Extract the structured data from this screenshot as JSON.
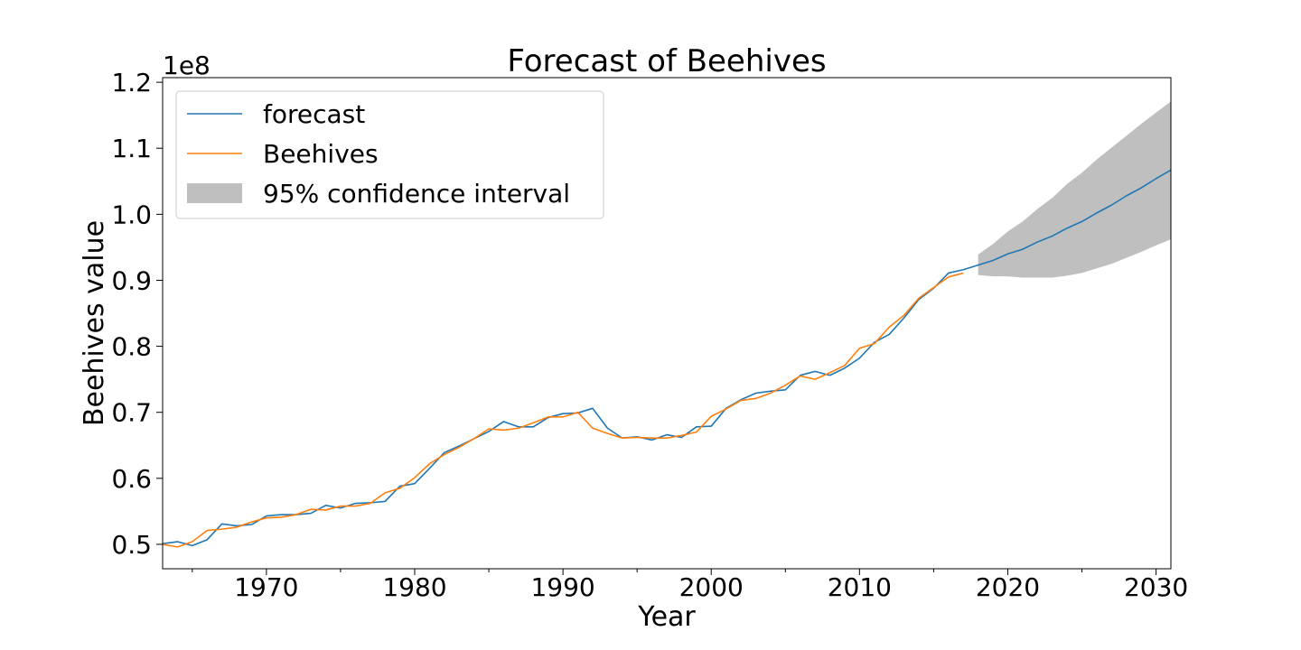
{
  "chart_data": {
    "type": "line",
    "title": "Forecast of Beehives",
    "xlabel": "Year",
    "ylabel": "Beehives value",
    "y_offset_label": "1e8",
    "xlim": [
      1963,
      2031
    ],
    "ylim": [
      0.463,
      1.207
    ],
    "y_scale_factor": 100000000,
    "x_ticks": [
      1970,
      1980,
      1990,
      2000,
      2010,
      2020,
      2030
    ],
    "x_tick_labels": [
      "1970",
      "1980",
      "1990",
      "2000",
      "2010",
      "2020",
      "2030"
    ],
    "y_ticks": [
      0.5,
      0.6,
      0.7,
      0.8,
      0.9,
      1.0,
      1.1,
      1.2
    ],
    "y_tick_labels": [
      "0.5",
      "0.6",
      "0.7",
      "0.8",
      "0.9",
      "1.0",
      "1.1",
      "1.2"
    ],
    "grid": false,
    "legend": {
      "position": "upper-left",
      "entries": [
        {
          "label": "forecast",
          "kind": "line",
          "color": "#1f77b4"
        },
        {
          "label": "Beehives",
          "kind": "line",
          "color": "#ff7f0e"
        },
        {
          "label": "95% confidence interval",
          "kind": "patch",
          "color": "#bfbfbf"
        }
      ]
    },
    "series": [
      {
        "name": "forecast",
        "color": "#1f77b4",
        "x": [
          1963,
          1964,
          1965,
          1966,
          1967,
          1968,
          1969,
          1970,
          1971,
          1972,
          1973,
          1974,
          1975,
          1976,
          1977,
          1978,
          1979,
          1980,
          1981,
          1982,
          1983,
          1984,
          1985,
          1986,
          1987,
          1988,
          1989,
          1990,
          1991,
          1992,
          1993,
          1994,
          1995,
          1996,
          1997,
          1998,
          1999,
          2000,
          2001,
          2002,
          2003,
          2004,
          2005,
          2006,
          2007,
          2008,
          2009,
          2010,
          2011,
          2012,
          2013,
          2014,
          2015,
          2016,
          2017,
          2018,
          2019,
          2020,
          2021,
          2022,
          2023,
          2024,
          2025,
          2026,
          2027,
          2028,
          2029,
          2030,
          2031
        ],
        "values": [
          0.501,
          0.504,
          0.498,
          0.507,
          0.531,
          0.528,
          0.53,
          0.543,
          0.545,
          0.545,
          0.547,
          0.559,
          0.555,
          0.562,
          0.563,
          0.565,
          0.588,
          0.592,
          0.615,
          0.639,
          0.649,
          0.66,
          0.671,
          0.686,
          0.678,
          0.678,
          0.692,
          0.698,
          0.699,
          0.706,
          0.676,
          0.661,
          0.663,
          0.658,
          0.666,
          0.662,
          0.678,
          0.679,
          0.706,
          0.719,
          0.729,
          0.732,
          0.734,
          0.756,
          0.762,
          0.756,
          0.767,
          0.782,
          0.806,
          0.818,
          0.843,
          0.871,
          0.888,
          0.911,
          0.916,
          0.923,
          0.93,
          0.94,
          0.947,
          0.958,
          0.967,
          0.979,
          0.989,
          1.002,
          1.014,
          1.028,
          1.04,
          1.054,
          1.067
        ]
      },
      {
        "name": "Beehives",
        "color": "#ff7f0e",
        "x": [
          1963,
          1964,
          1965,
          1966,
          1967,
          1968,
          1969,
          1970,
          1971,
          1972,
          1973,
          1974,
          1975,
          1976,
          1977,
          1978,
          1979,
          1980,
          1981,
          1982,
          1983,
          1984,
          1985,
          1986,
          1987,
          1988,
          1989,
          1990,
          1991,
          1992,
          1993,
          1994,
          1995,
          1996,
          1997,
          1998,
          1999,
          2000,
          2001,
          2002,
          2003,
          2004,
          2005,
          2006,
          2007,
          2008,
          2009,
          2010,
          2011,
          2012,
          2013,
          2014,
          2015,
          2016,
          2017
        ],
        "values": [
          0.5,
          0.496,
          0.504,
          0.521,
          0.523,
          0.526,
          0.534,
          0.54,
          0.541,
          0.545,
          0.553,
          0.552,
          0.558,
          0.558,
          0.562,
          0.578,
          0.585,
          0.601,
          0.622,
          0.636,
          0.647,
          0.66,
          0.675,
          0.673,
          0.676,
          0.684,
          0.693,
          0.693,
          0.7,
          0.676,
          0.668,
          0.661,
          0.662,
          0.661,
          0.661,
          0.665,
          0.67,
          0.694,
          0.705,
          0.718,
          0.721,
          0.729,
          0.741,
          0.755,
          0.75,
          0.76,
          0.771,
          0.797,
          0.804,
          0.829,
          0.847,
          0.873,
          0.889,
          0.905,
          0.911
        ]
      }
    ],
    "confidence_interval": {
      "name": "95% confidence interval",
      "color": "#bfbfbf",
      "x": [
        2018,
        2019,
        2020,
        2021,
        2022,
        2023,
        2024,
        2025,
        2026,
        2027,
        2028,
        2029,
        2030,
        2031
      ],
      "lower": [
        0.908,
        0.906,
        0.906,
        0.904,
        0.904,
        0.904,
        0.907,
        0.911,
        0.918,
        0.925,
        0.934,
        0.943,
        0.953,
        0.962
      ],
      "upper": [
        0.939,
        0.955,
        0.974,
        0.989,
        1.008,
        1.025,
        1.046,
        1.063,
        1.083,
        1.101,
        1.119,
        1.137,
        1.154,
        1.171
      ]
    }
  }
}
